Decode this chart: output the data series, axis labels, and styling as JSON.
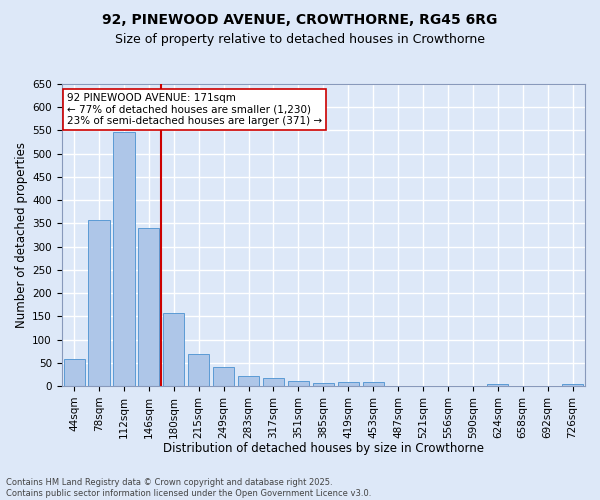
{
  "title": "92, PINEWOOD AVENUE, CROWTHORNE, RG45 6RG",
  "subtitle": "Size of property relative to detached houses in Crowthorne",
  "xlabel": "Distribution of detached houses by size in Crowthorne",
  "ylabel": "Number of detached properties",
  "categories": [
    "44sqm",
    "78sqm",
    "112sqm",
    "146sqm",
    "180sqm",
    "215sqm",
    "249sqm",
    "283sqm",
    "317sqm",
    "351sqm",
    "385sqm",
    "419sqm",
    "453sqm",
    "487sqm",
    "521sqm",
    "556sqm",
    "590sqm",
    "624sqm",
    "658sqm",
    "692sqm",
    "726sqm"
  ],
  "values": [
    58,
    357,
    547,
    340,
    157,
    68,
    41,
    22,
    18,
    10,
    6,
    9,
    8,
    0,
    0,
    0,
    0,
    5,
    0,
    0,
    4
  ],
  "bar_color": "#aec6e8",
  "bar_edge_color": "#5b9bd5",
  "vline_color": "#cc0000",
  "vline_pos": 3.5,
  "annotation_text": "92 PINEWOOD AVENUE: 171sqm\n← 77% of detached houses are smaller (1,230)\n23% of semi-detached houses are larger (371) →",
  "annotation_box_color": "#ffffff",
  "annotation_box_edge": "#cc0000",
  "ylim": [
    0,
    650
  ],
  "yticks": [
    0,
    50,
    100,
    150,
    200,
    250,
    300,
    350,
    400,
    450,
    500,
    550,
    600,
    650
  ],
  "background_color": "#dde8f8",
  "grid_color": "#ffffff",
  "footnote": "Contains HM Land Registry data © Crown copyright and database right 2025.\nContains public sector information licensed under the Open Government Licence v3.0.",
  "title_fontsize": 10,
  "subtitle_fontsize": 9,
  "xlabel_fontsize": 8.5,
  "ylabel_fontsize": 8.5,
  "tick_fontsize": 7.5,
  "annot_fontsize": 7.5,
  "footnote_fontsize": 6.0
}
